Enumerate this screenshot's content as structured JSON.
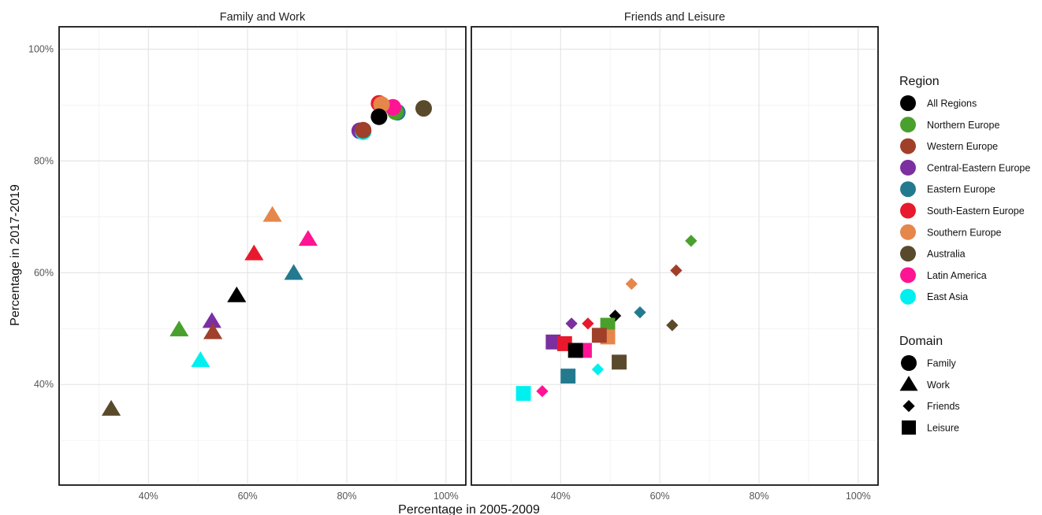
{
  "chart_data": {
    "type": "scatter",
    "xlabel": "Percentage in 2005-2009",
    "ylabel": "Percentage in 2017-2019",
    "xlim": [
      0.22,
      1.04
    ],
    "ylim": [
      0.22,
      1.04
    ],
    "x_ticks": [
      0.4,
      0.6,
      0.8,
      1.0
    ],
    "y_ticks": [
      0.4,
      0.6,
      0.8,
      1.0
    ],
    "x_tick_labels": [
      "40%",
      "60%",
      "80%",
      "100%"
    ],
    "y_tick_labels": [
      "40%",
      "60%",
      "80%",
      "100%"
    ],
    "grid": true,
    "legend_placement": "right",
    "regions": [
      {
        "name": "All Regions",
        "color": "#000000"
      },
      {
        "name": "Northern Europe",
        "color": "#4aa02c"
      },
      {
        "name": "Western Europe",
        "color": "#a0402a"
      },
      {
        "name": "Central-Eastern Europe",
        "color": "#7b2fa0"
      },
      {
        "name": "Eastern Europe",
        "color": "#237a8f"
      },
      {
        "name": "South-Eastern Europe",
        "color": "#e8192c"
      },
      {
        "name": "Southern Europe",
        "color": "#e5874a"
      },
      {
        "name": "Australia",
        "color": "#5a4a2c"
      },
      {
        "name": "Latin America",
        "color": "#ff1493"
      },
      {
        "name": "East Asia",
        "color": "#00f0f0"
      }
    ],
    "legend": {
      "region_title": "Region",
      "domain_title": "Domain",
      "domains": [
        {
          "name": "Family",
          "shape": "circle"
        },
        {
          "name": "Work",
          "shape": "triangle"
        },
        {
          "name": "Friends",
          "shape": "diamond"
        },
        {
          "name": "Leisure",
          "shape": "square"
        }
      ]
    },
    "panels": [
      {
        "title": "Family and Work",
        "points": [
          {
            "region": "Eastern Europe",
            "domain": "Family",
            "x": 0.902,
            "y": 0.887
          },
          {
            "region": "Northern Europe",
            "domain": "Family",
            "x": 0.898,
            "y": 0.888
          },
          {
            "region": "Latin America",
            "domain": "Family",
            "x": 0.893,
            "y": 0.896
          },
          {
            "region": "South-Eastern Europe",
            "domain": "Family",
            "x": 0.865,
            "y": 0.903
          },
          {
            "region": "Southern Europe",
            "domain": "Family",
            "x": 0.87,
            "y": 0.901
          },
          {
            "region": "Australia",
            "domain": "Family",
            "x": 0.955,
            "y": 0.894
          },
          {
            "region": "All Regions",
            "domain": "Family",
            "x": 0.865,
            "y": 0.879
          },
          {
            "region": "Central-Eastern Europe",
            "domain": "Family",
            "x": 0.826,
            "y": 0.854
          },
          {
            "region": "East Asia",
            "domain": "Family",
            "x": 0.833,
            "y": 0.852
          },
          {
            "region": "Western Europe",
            "domain": "Family",
            "x": 0.833,
            "y": 0.855
          },
          {
            "region": "Southern Europe",
            "domain": "Work",
            "x": 0.65,
            "y": 0.703
          },
          {
            "region": "Latin America",
            "domain": "Work",
            "x": 0.722,
            "y": 0.66
          },
          {
            "region": "South-Eastern Europe",
            "domain": "Work",
            "x": 0.613,
            "y": 0.634
          },
          {
            "region": "Eastern Europe",
            "domain": "Work",
            "x": 0.693,
            "y": 0.599
          },
          {
            "region": "All Regions",
            "domain": "Work",
            "x": 0.578,
            "y": 0.559
          },
          {
            "region": "Central-Eastern Europe",
            "domain": "Work",
            "x": 0.528,
            "y": 0.513
          },
          {
            "region": "Northern Europe",
            "domain": "Work",
            "x": 0.462,
            "y": 0.498
          },
          {
            "region": "Western Europe",
            "domain": "Work",
            "x": 0.53,
            "y": 0.493
          },
          {
            "region": "East Asia",
            "domain": "Work",
            "x": 0.505,
            "y": 0.443
          },
          {
            "region": "Australia",
            "domain": "Work",
            "x": 0.325,
            "y": 0.356
          }
        ]
      },
      {
        "title": "Friends and Leisure",
        "points": [
          {
            "region": "Northern Europe",
            "domain": "Friends",
            "x": 0.663,
            "y": 0.657
          },
          {
            "region": "Western Europe",
            "domain": "Friends",
            "x": 0.633,
            "y": 0.604
          },
          {
            "region": "Southern Europe",
            "domain": "Friends",
            "x": 0.543,
            "y": 0.58
          },
          {
            "region": "Eastern Europe",
            "domain": "Friends",
            "x": 0.56,
            "y": 0.529
          },
          {
            "region": "All Regions",
            "domain": "Friends",
            "x": 0.51,
            "y": 0.523
          },
          {
            "region": "Australia",
            "domain": "Friends",
            "x": 0.625,
            "y": 0.506
          },
          {
            "region": "Central-Eastern Europe",
            "domain": "Friends",
            "x": 0.422,
            "y": 0.509
          },
          {
            "region": "South-Eastern Europe",
            "domain": "Friends",
            "x": 0.455,
            "y": 0.509
          },
          {
            "region": "East Asia",
            "domain": "Friends",
            "x": 0.475,
            "y": 0.427
          },
          {
            "region": "Latin America",
            "domain": "Friends",
            "x": 0.363,
            "y": 0.388
          },
          {
            "region": "Northern Europe",
            "domain": "Leisure",
            "x": 0.495,
            "y": 0.506
          },
          {
            "region": "Southern Europe",
            "domain": "Leisure",
            "x": 0.495,
            "y": 0.485
          },
          {
            "region": "Western Europe",
            "domain": "Leisure",
            "x": 0.478,
            "y": 0.488
          },
          {
            "region": "Central-Eastern Europe",
            "domain": "Leisure",
            "x": 0.385,
            "y": 0.476
          },
          {
            "region": "South-Eastern Europe",
            "domain": "Leisure",
            "x": 0.408,
            "y": 0.473
          },
          {
            "region": "Latin America",
            "domain": "Leisure",
            "x": 0.448,
            "y": 0.461
          },
          {
            "region": "All Regions",
            "domain": "Leisure",
            "x": 0.43,
            "y": 0.461
          },
          {
            "region": "Australia",
            "domain": "Leisure",
            "x": 0.518,
            "y": 0.44
          },
          {
            "region": "Eastern Europe",
            "domain": "Leisure",
            "x": 0.415,
            "y": 0.415
          },
          {
            "region": "East Asia",
            "domain": "Leisure",
            "x": 0.325,
            "y": 0.384
          }
        ]
      }
    ]
  }
}
